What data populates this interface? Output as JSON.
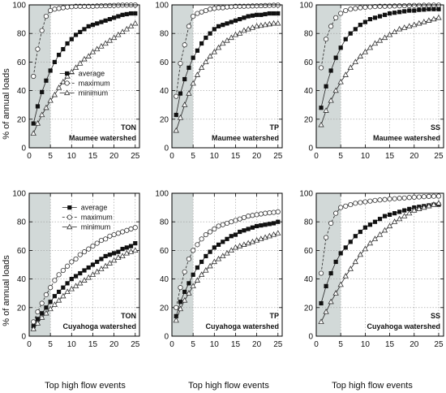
{
  "figure": {
    "ylabel": "% of annual loads",
    "xlabel": "Top high flow events",
    "legend": {
      "average": "average",
      "maximum": "maximum",
      "minimum": "minimum"
    }
  },
  "chart_data": [
    {
      "type": "line",
      "param": "TON",
      "watershed": "Maumee watershed",
      "xlim": [
        0,
        26
      ],
      "ylim": [
        0,
        100
      ],
      "xticks": [
        0,
        5,
        10,
        15,
        20,
        25
      ],
      "yticks": [
        0,
        20,
        40,
        60,
        80,
        100
      ],
      "grid": true,
      "shaded_x": [
        0,
        5
      ],
      "legend": "center",
      "x": [
        1,
        2,
        3,
        4,
        5,
        6,
        7,
        8,
        9,
        10,
        11,
        12,
        13,
        14,
        15,
        16,
        17,
        18,
        19,
        20,
        21,
        22,
        23,
        24,
        25
      ],
      "series": [
        {
          "name": "average",
          "values": [
            17,
            29,
            39,
            47,
            54,
            60,
            65,
            69,
            73,
            76,
            79,
            81,
            83,
            85,
            86,
            87,
            88,
            89,
            90,
            91,
            92,
            93,
            93.5,
            94,
            94
          ]
        },
        {
          "name": "maximum",
          "values": [
            50,
            69,
            82,
            92,
            96,
            97,
            97.5,
            98,
            98.5,
            98.7,
            99,
            99,
            99,
            99,
            99,
            99.2,
            99.3,
            99.4,
            99.5,
            99.6,
            99.7,
            99.8,
            99.8,
            99.9,
            99.9
          ]
        },
        {
          "name": "minimum",
          "values": [
            10,
            17,
            23,
            28,
            33,
            37,
            42,
            46,
            50,
            53,
            56,
            59,
            62,
            64,
            67,
            69,
            71,
            73,
            75,
            77,
            79,
            81,
            83,
            85,
            87
          ]
        }
      ]
    },
    {
      "type": "line",
      "param": "TP",
      "watershed": "Maumee watershed",
      "xlim": [
        0,
        26
      ],
      "ylim": [
        0,
        100
      ],
      "xticks": [
        0,
        5,
        10,
        15,
        20,
        25
      ],
      "yticks": [
        0,
        20,
        40,
        60,
        80,
        100
      ],
      "grid": true,
      "shaded_x": [
        0,
        5
      ],
      "x": [
        1,
        2,
        3,
        4,
        5,
        6,
        7,
        8,
        9,
        10,
        11,
        12,
        13,
        14,
        15,
        16,
        17,
        18,
        19,
        20,
        21,
        22,
        23,
        24,
        25
      ],
      "series": [
        {
          "name": "average",
          "values": [
            23,
            38,
            48,
            56,
            63,
            68,
            73,
            77,
            80,
            83,
            85,
            86,
            87,
            88,
            89,
            90,
            91,
            92,
            92.5,
            93,
            93,
            93.5,
            94,
            94,
            94
          ]
        },
        {
          "name": "maximum",
          "values": [
            36,
            59,
            72,
            85,
            92,
            94,
            95,
            96,
            97,
            97.5,
            98,
            98,
            98.5,
            98.7,
            99,
            99,
            99,
            99.1,
            99.2,
            99.3,
            99.4,
            99.5,
            99.6,
            99.7,
            99.8
          ]
        },
        {
          "name": "minimum",
          "values": [
            12,
            21,
            30,
            38,
            45,
            51,
            56,
            60,
            64,
            67,
            70,
            73,
            75,
            77,
            79,
            80,
            82,
            83,
            84,
            85,
            85.5,
            86,
            86.5,
            87,
            87
          ]
        }
      ]
    },
    {
      "type": "line",
      "param": "SS",
      "watershed": "Maumee watershed",
      "xlim": [
        0,
        26
      ],
      "ylim": [
        0,
        100
      ],
      "xticks": [
        0,
        5,
        10,
        15,
        20,
        25
      ],
      "yticks": [
        0,
        20,
        40,
        60,
        80,
        100
      ],
      "grid": true,
      "shaded_x": [
        0,
        5
      ],
      "x": [
        1,
        2,
        3,
        4,
        5,
        6,
        7,
        8,
        9,
        10,
        11,
        12,
        13,
        14,
        15,
        16,
        17,
        18,
        19,
        20,
        21,
        22,
        23,
        24,
        25
      ],
      "series": [
        {
          "name": "average",
          "values": [
            28,
            43,
            54,
            63,
            70,
            76,
            80,
            83,
            86,
            88,
            90,
            91,
            92,
            93,
            94,
            94.5,
            95,
            95.5,
            96,
            96,
            96.5,
            96.7,
            97,
            97,
            97
          ]
        },
        {
          "name": "maximum",
          "values": [
            56,
            76,
            85,
            91,
            94,
            96,
            97,
            97.5,
            98,
            98.3,
            98.6,
            98.8,
            99,
            99,
            99.1,
            99.2,
            99.3,
            99.4,
            99.5,
            99.6,
            99.6,
            99.7,
            99.7,
            99.8,
            99.8
          ]
        },
        {
          "name": "minimum",
          "values": [
            16,
            26,
            33,
            40,
            46,
            51,
            56,
            60,
            64,
            67,
            70,
            73,
            75,
            77,
            79,
            81,
            83,
            84,
            85,
            86,
            87,
            88,
            89,
            90,
            91
          ]
        }
      ]
    },
    {
      "type": "line",
      "param": "TON",
      "watershed": "Cuyahoga watershed",
      "xlim": [
        0,
        26
      ],
      "ylim": [
        0,
        100
      ],
      "xticks": [
        0,
        5,
        10,
        15,
        20,
        25
      ],
      "yticks": [
        0,
        20,
        40,
        60,
        80,
        100
      ],
      "grid": true,
      "shaded_x": [
        0,
        5
      ],
      "legend": "top-center",
      "x": [
        1,
        2,
        3,
        4,
        5,
        6,
        7,
        8,
        9,
        10,
        11,
        12,
        13,
        14,
        15,
        16,
        17,
        18,
        19,
        20,
        21,
        22,
        23,
        24,
        25
      ],
      "series": [
        {
          "name": "average",
          "values": [
            7,
            12,
            16,
            20,
            24,
            28,
            31,
            34,
            37,
            40,
            42,
            44,
            46,
            48,
            50,
            52,
            54,
            56,
            57,
            58,
            59,
            61,
            62,
            63,
            65
          ]
        },
        {
          "name": "maximum",
          "values": [
            10,
            17,
            23,
            29,
            34,
            39,
            43,
            46,
            49,
            52,
            54,
            57,
            59,
            61,
            63,
            65,
            67,
            68,
            70,
            71,
            72,
            73,
            74,
            75,
            76
          ]
        },
        {
          "name": "minimum",
          "values": [
            5,
            9,
            13,
            16,
            19,
            22,
            25,
            28,
            31,
            33,
            35,
            37,
            39,
            41,
            43,
            45,
            47,
            49,
            51,
            53,
            55,
            56,
            58,
            59,
            60
          ]
        }
      ]
    },
    {
      "type": "line",
      "param": "TP",
      "watershed": "Cuyahoga watershed",
      "xlim": [
        0,
        26
      ],
      "ylim": [
        0,
        100
      ],
      "xticks": [
        0,
        5,
        10,
        15,
        20,
        25
      ],
      "yticks": [
        0,
        20,
        40,
        60,
        80,
        100
      ],
      "grid": true,
      "shaded_x": [
        0,
        5
      ],
      "x": [
        1,
        2,
        3,
        4,
        5,
        6,
        7,
        8,
        9,
        10,
        11,
        12,
        13,
        14,
        15,
        16,
        17,
        18,
        19,
        20,
        21,
        22,
        23,
        24,
        25
      ],
      "series": [
        {
          "name": "average",
          "values": [
            14,
            24,
            31,
            37,
            43,
            48,
            52,
            56,
            59,
            62,
            64,
            66,
            68,
            70,
            71,
            73,
            74,
            75,
            76,
            77,
            77.5,
            78,
            78.5,
            79,
            80
          ]
        },
        {
          "name": "maximum",
          "values": [
            20,
            34,
            45,
            54,
            60,
            64,
            68,
            71,
            73,
            75,
            77,
            78,
            79,
            80,
            81,
            82,
            83,
            84,
            84.5,
            85,
            85.5,
            86,
            86.3,
            86.6,
            87
          ]
        },
        {
          "name": "minimum",
          "values": [
            11,
            19,
            25,
            30,
            35,
            39,
            43,
            46,
            49,
            52,
            54,
            56,
            58,
            60,
            62,
            63,
            64,
            65,
            66,
            67,
            68,
            69,
            70,
            71,
            72
          ]
        }
      ]
    },
    {
      "type": "line",
      "param": "SS",
      "watershed": "Cuyahoga watershed",
      "xlim": [
        0,
        26
      ],
      "ylim": [
        0,
        100
      ],
      "xticks": [
        0,
        5,
        10,
        15,
        20,
        25
      ],
      "yticks": [
        0,
        20,
        40,
        60,
        80,
        100
      ],
      "grid": true,
      "shaded_x": [
        0,
        5
      ],
      "x": [
        1,
        2,
        3,
        4,
        5,
        6,
        7,
        8,
        9,
        10,
        11,
        12,
        13,
        14,
        15,
        16,
        17,
        18,
        19,
        20,
        21,
        22,
        23,
        24,
        25
      ],
      "series": [
        {
          "name": "average",
          "values": [
            23,
            35,
            44,
            52,
            58,
            62,
            66,
            70,
            73,
            76,
            78,
            80,
            82,
            84,
            85,
            86,
            87,
            88,
            89,
            90,
            90.5,
            91,
            91.5,
            92,
            92
          ]
        },
        {
          "name": "maximum",
          "values": [
            44,
            69,
            79,
            86,
            90,
            91,
            92,
            93,
            93.5,
            94,
            94.5,
            95,
            95.3,
            95.6,
            96,
            96.2,
            96.5,
            96.7,
            97,
            97.2,
            97.4,
            97.6,
            97.8,
            97.9,
            98
          ]
        },
        {
          "name": "minimum",
          "values": [
            10,
            17,
            24,
            30,
            36,
            42,
            47,
            52,
            57,
            61,
            65,
            68,
            71,
            74,
            77,
            80,
            82,
            84,
            86,
            88,
            89,
            90,
            91,
            92,
            93
          ]
        }
      ]
    }
  ]
}
